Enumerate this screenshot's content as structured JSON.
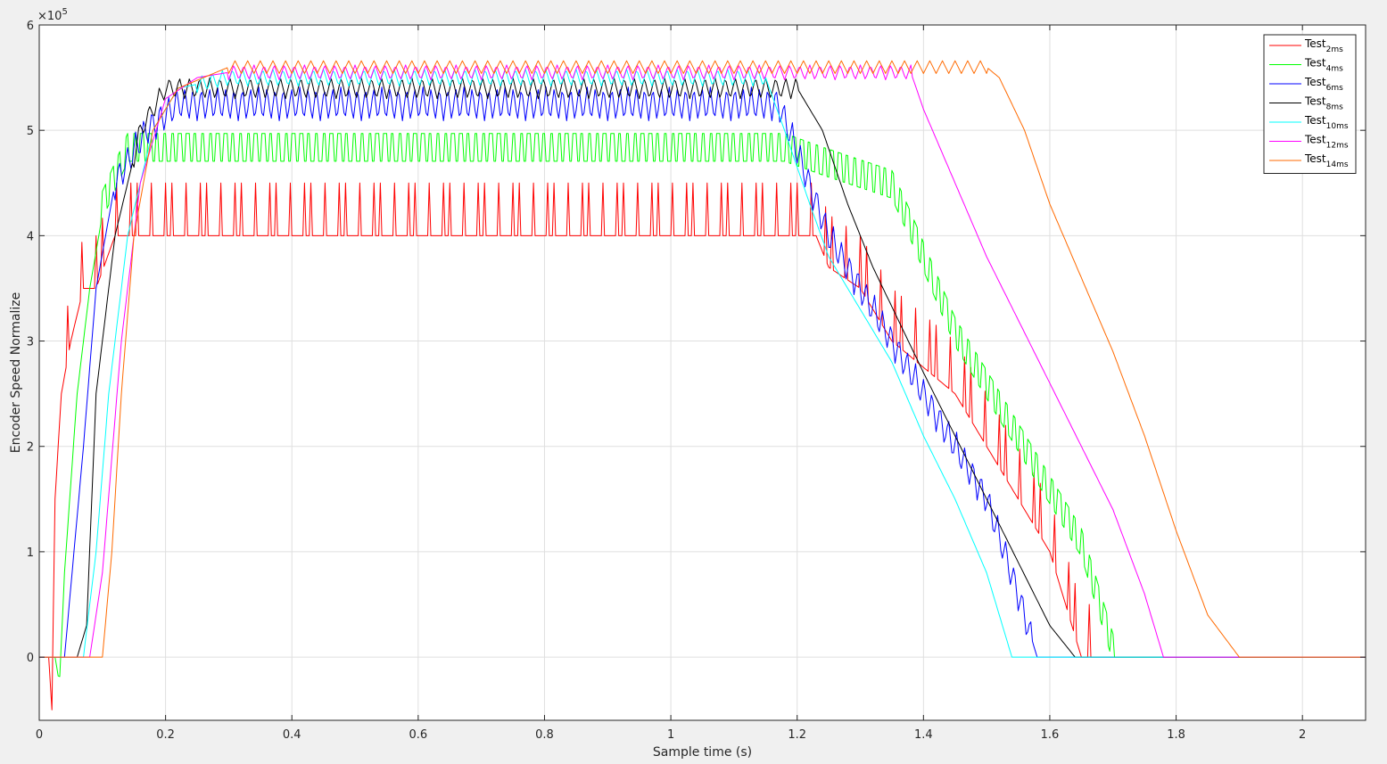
{
  "chart_data": {
    "type": "line",
    "xlabel": "Sample time (s)",
    "ylabel": "Encoder Speed Normalize",
    "exponent_base": "×10",
    "exponent_power": "5",
    "xlim": [
      0,
      2.1
    ],
    "ylim": [
      -0.6,
      6
    ],
    "xticks": [
      0,
      0.2,
      0.4,
      0.6,
      0.8,
      1,
      1.2,
      1.4,
      1.6,
      1.8,
      2
    ],
    "xtick_labels": [
      "0",
      "0.2",
      "0.4",
      "0.6",
      "0.8",
      "1",
      "1.2",
      "1.4",
      "1.6",
      "1.8",
      "2"
    ],
    "yticks": [
      0,
      1,
      2,
      3,
      4,
      5,
      6
    ],
    "ytick_labels": [
      "0",
      "1",
      "2",
      "3",
      "4",
      "5",
      "6"
    ],
    "grid": true,
    "legend_position": "top-right",
    "series": [
      {
        "name": "Test",
        "subscript": "2ms",
        "color": "#ff0000",
        "base": [
          [
            0.0,
            0
          ],
          [
            0.015,
            0
          ],
          [
            0.02,
            -0.5
          ],
          [
            0.025,
            1.5
          ],
          [
            0.035,
            2.5
          ],
          [
            0.05,
            3
          ],
          [
            0.07,
            3.5
          ],
          [
            0.09,
            3.5
          ],
          [
            0.12,
            4
          ],
          [
            1.23,
            4
          ],
          [
            1.25,
            3.7
          ],
          [
            1.3,
            3.5
          ],
          [
            1.35,
            3
          ],
          [
            1.45,
            2.5
          ],
          [
            1.5,
            2
          ],
          [
            1.55,
            1.5
          ],
          [
            1.6,
            1
          ],
          [
            1.65,
            0
          ],
          [
            2.1,
            0
          ]
        ],
        "osc": {
          "start": 0.04,
          "end": 1.67,
          "period": 0.011,
          "amp": 0.5,
          "pattern": "spike"
        }
      },
      {
        "name": "Test",
        "subscript": "4ms",
        "color": "#00ff00",
        "base": [
          [
            0.0,
            0
          ],
          [
            0.025,
            0
          ],
          [
            0.032,
            -0.25
          ],
          [
            0.04,
            0.8
          ],
          [
            0.06,
            2.5
          ],
          [
            0.08,
            3.5
          ],
          [
            0.1,
            4.2
          ],
          [
            0.14,
            4.75
          ],
          [
            0.2,
            4.75
          ],
          [
            1.18,
            4.75
          ],
          [
            1.25,
            4.6
          ],
          [
            1.35,
            4.4
          ],
          [
            1.38,
            4
          ],
          [
            1.45,
            3
          ],
          [
            1.55,
            2
          ],
          [
            1.6,
            1.5
          ],
          [
            1.65,
            1
          ],
          [
            1.7,
            0
          ],
          [
            2.1,
            0
          ]
        ],
        "osc": {
          "start": 0.1,
          "end": 1.7,
          "period": 0.012,
          "amp": 0.22,
          "pattern": "square"
        }
      },
      {
        "name": "Test",
        "subscript": "6ms",
        "color": "#0000ff",
        "base": [
          [
            0.0,
            0
          ],
          [
            0.04,
            0
          ],
          [
            0.07,
            2
          ],
          [
            0.09,
            3.5
          ],
          [
            0.12,
            4.5
          ],
          [
            0.17,
            5
          ],
          [
            0.22,
            5.25
          ],
          [
            1.17,
            5.25
          ],
          [
            1.2,
            4.8
          ],
          [
            1.25,
            4
          ],
          [
            1.3,
            3.5
          ],
          [
            1.35,
            3
          ],
          [
            1.4,
            2.5
          ],
          [
            1.45,
            2
          ],
          [
            1.5,
            1.5
          ],
          [
            1.55,
            0.6
          ],
          [
            1.58,
            0
          ],
          [
            2.1,
            0
          ]
        ],
        "osc": {
          "start": 0.12,
          "end": 1.57,
          "period": 0.013,
          "amp": 0.16,
          "pattern": "zigzag"
        }
      },
      {
        "name": "Test",
        "subscript": "8ms",
        "color": "#000000",
        "base": [
          [
            0.0,
            0
          ],
          [
            0.06,
            0
          ],
          [
            0.075,
            0.3
          ],
          [
            0.09,
            2.5
          ],
          [
            0.12,
            4
          ],
          [
            0.16,
            5
          ],
          [
            0.2,
            5.4
          ],
          [
            1.2,
            5.4
          ],
          [
            1.24,
            5
          ],
          [
            1.28,
            4.3
          ],
          [
            1.32,
            3.7
          ],
          [
            1.36,
            3.2
          ],
          [
            1.4,
            2.7
          ],
          [
            1.45,
            2.1
          ],
          [
            1.5,
            1.5
          ],
          [
            1.55,
            0.9
          ],
          [
            1.6,
            0.3
          ],
          [
            1.64,
            0
          ],
          [
            2.1,
            0
          ]
        ],
        "osc": {
          "start": 0.15,
          "end": 1.2,
          "period": 0.016,
          "amp": 0.1,
          "pattern": "zigzag"
        }
      },
      {
        "name": "Test",
        "subscript": "10ms",
        "color": "#00ffff",
        "base": [
          [
            0.0,
            0
          ],
          [
            0.07,
            0
          ],
          [
            0.09,
            1
          ],
          [
            0.11,
            2.5
          ],
          [
            0.14,
            4
          ],
          [
            0.18,
            5
          ],
          [
            0.22,
            5.4
          ],
          [
            0.3,
            5.5
          ],
          [
            1.15,
            5.5
          ],
          [
            1.18,
            5
          ],
          [
            1.22,
            4.3
          ],
          [
            1.25,
            3.8
          ],
          [
            1.3,
            3.3
          ],
          [
            1.35,
            2.8
          ],
          [
            1.4,
            2.1
          ],
          [
            1.45,
            1.5
          ],
          [
            1.5,
            0.8
          ],
          [
            1.54,
            0
          ],
          [
            2.1,
            0
          ]
        ],
        "osc": {
          "start": 0.25,
          "end": 1.15,
          "period": 0.016,
          "amp": 0.08,
          "pattern": "zigzag"
        }
      },
      {
        "name": "Test",
        "subscript": "12ms",
        "color": "#ff00ff",
        "base": [
          [
            0.0,
            0
          ],
          [
            0.08,
            0
          ],
          [
            0.1,
            0.8
          ],
          [
            0.13,
            3
          ],
          [
            0.16,
            4.5
          ],
          [
            0.2,
            5.3
          ],
          [
            0.25,
            5.5
          ],
          [
            0.3,
            5.55
          ],
          [
            1.38,
            5.55
          ],
          [
            1.4,
            5.2
          ],
          [
            1.45,
            4.5
          ],
          [
            1.5,
            3.8
          ],
          [
            1.55,
            3.2
          ],
          [
            1.6,
            2.6
          ],
          [
            1.65,
            2
          ],
          [
            1.7,
            1.4
          ],
          [
            1.75,
            0.6
          ],
          [
            1.78,
            0
          ],
          [
            2.1,
            0
          ]
        ],
        "osc": {
          "start": 0.3,
          "end": 1.38,
          "period": 0.016,
          "amp": 0.07,
          "pattern": "zigzag"
        }
      },
      {
        "name": "Test",
        "subscript": "14ms",
        "color": "#ff6a00",
        "base": [
          [
            0.0,
            0
          ],
          [
            0.1,
            0
          ],
          [
            0.115,
            1
          ],
          [
            0.13,
            2.5
          ],
          [
            0.15,
            4
          ],
          [
            0.18,
            5
          ],
          [
            0.22,
            5.4
          ],
          [
            0.3,
            5.6
          ],
          [
            1.5,
            5.6
          ],
          [
            1.52,
            5.5
          ],
          [
            1.56,
            5
          ],
          [
            1.6,
            4.3
          ],
          [
            1.65,
            3.6
          ],
          [
            1.7,
            2.9
          ],
          [
            1.75,
            2.1
          ],
          [
            1.8,
            1.2
          ],
          [
            1.85,
            0.4
          ],
          [
            1.9,
            0
          ],
          [
            2.1,
            0
          ]
        ],
        "osc": {
          "start": 0.3,
          "end": 1.5,
          "period": 0.02,
          "amp": 0.06,
          "pattern": "zigzag"
        }
      }
    ]
  }
}
